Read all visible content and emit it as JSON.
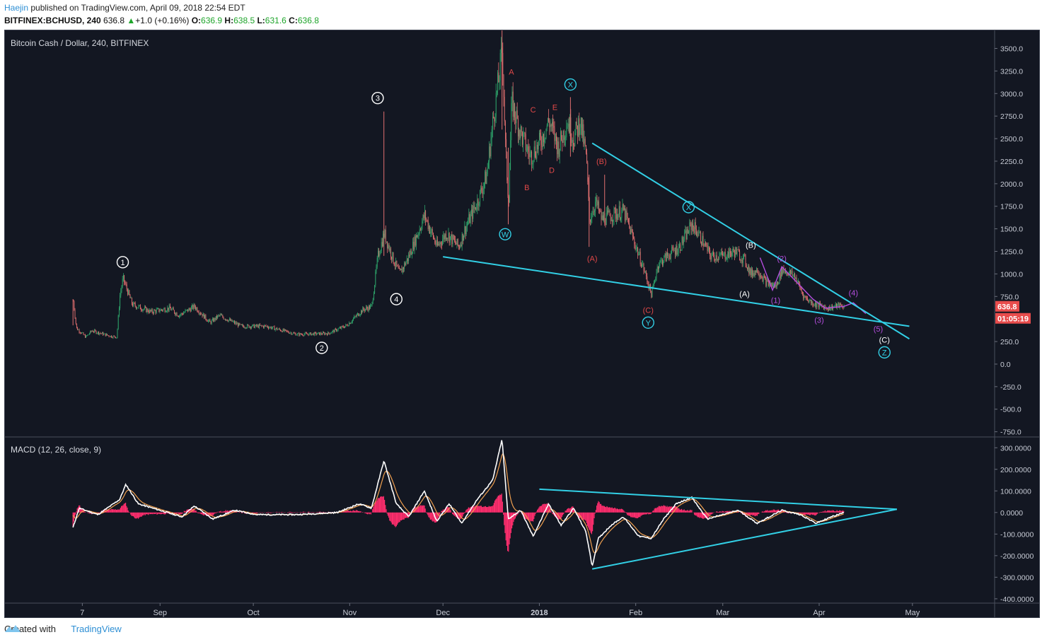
{
  "header": {
    "user": "Haejin",
    "published": "published on TradingView.com, April 09, 2018 22:54 EDT",
    "symbol": "BITFINEX:BCHUSD, 240",
    "last": "636.8",
    "change": "+1.0 (+0.16%)",
    "o_label": "O:",
    "o": "636.9",
    "h_label": "H:",
    "h": "638.5",
    "l_label": "L:",
    "l": "631.6",
    "c_label": "C:",
    "c": "636.8"
  },
  "footer": {
    "created_with": "Created with",
    "brand": "TradingView"
  },
  "colors": {
    "background": "#131722",
    "up": "#2ea66b",
    "down": "#e06f6f",
    "trendline": "#32d0e6",
    "macd_line": "#ffffff",
    "signal_line": "#f0a050",
    "histogram": "#ff2e6e",
    "wave_red": "#e04848",
    "wave_purple": "#b44dde",
    "wave_white": "#ffffff",
    "price_tag": "#e84c4c"
  },
  "chart_data": [
    {
      "type": "candlestick",
      "title": "Bitcoin Cash / Dollar, 240, BITFINEX",
      "ylim": [
        -800,
        3700
      ],
      "y_ticks": [
        "3500.0",
        "3250.0",
        "3000.0",
        "2750.0",
        "2500.0",
        "2250.0",
        "2000.0",
        "1750.0",
        "1500.0",
        "1250.0",
        "1000.0",
        "750.0",
        "250.0",
        "0.0",
        "-250.0",
        "-500.0",
        "-750.0"
      ],
      "x_ticks": [
        "7",
        "Sep",
        "Oct",
        "Nov",
        "Dec",
        "2018",
        "Feb",
        "Mar",
        "Apr",
        "May"
      ],
      "last_price": "636.8",
      "countdown": "01:05:19",
      "price_path": [
        [
          "2017-08-04",
          700
        ],
        [
          "2017-08-05",
          400
        ],
        [
          "2017-08-08",
          300
        ],
        [
          "2017-08-10",
          370
        ],
        [
          "2017-08-16",
          310
        ],
        [
          "2017-08-18",
          300
        ],
        [
          "2017-08-19",
          760
        ],
        [
          "2017-08-20",
          950
        ],
        [
          "2017-08-23",
          660
        ],
        [
          "2017-08-29",
          580
        ],
        [
          "2017-09-04",
          620
        ],
        [
          "2017-09-07",
          540
        ],
        [
          "2017-09-12",
          640
        ],
        [
          "2017-09-17",
          460
        ],
        [
          "2017-09-20",
          540
        ],
        [
          "2017-09-27",
          420
        ],
        [
          "2017-10-05",
          420
        ],
        [
          "2017-10-15",
          330
        ],
        [
          "2017-10-25",
          340
        ],
        [
          "2017-10-31",
          430
        ],
        [
          "2017-11-05",
          600
        ],
        [
          "2017-11-08",
          640
        ],
        [
          "2017-11-10",
          1200
        ],
        [
          "2017-11-12",
          1450
        ],
        [
          "2017-11-15",
          1150
        ],
        [
          "2017-11-17",
          1000
        ],
        [
          "2017-11-20",
          1200
        ],
        [
          "2017-11-25",
          1650
        ],
        [
          "2017-11-29",
          1300
        ],
        [
          "2017-12-02",
          1450
        ],
        [
          "2017-12-06",
          1300
        ],
        [
          "2017-12-08",
          1500
        ],
        [
          "2017-12-12",
          1800
        ],
        [
          "2017-12-15",
          2100
        ],
        [
          "2017-12-17",
          2700
        ],
        [
          "2017-12-19",
          3200
        ],
        [
          "2017-12-20",
          3500
        ],
        [
          "2017-12-21",
          2400
        ],
        [
          "2017-12-22",
          1800
        ],
        [
          "2017-12-23",
          2900
        ],
        [
          "2017-12-26",
          2550
        ],
        [
          "2017-12-29",
          2300
        ],
        [
          "2018-01-01",
          2450
        ],
        [
          "2018-01-04",
          2700
        ],
        [
          "2018-01-07",
          2400
        ],
        [
          "2018-01-10",
          2700
        ],
        [
          "2018-01-12",
          2500
        ],
        [
          "2018-01-14",
          2700
        ],
        [
          "2018-01-16",
          2300
        ],
        [
          "2018-01-17",
          1600
        ],
        [
          "2018-01-19",
          1800
        ],
        [
          "2018-01-21",
          1600
        ],
        [
          "2018-01-24",
          1650
        ],
        [
          "2018-01-28",
          1700
        ],
        [
          "2018-02-01",
          1300
        ],
        [
          "2018-02-04",
          1000
        ],
        [
          "2018-02-06",
          770
        ],
        [
          "2018-02-08",
          1100
        ],
        [
          "2018-02-11",
          1200
        ],
        [
          "2018-02-15",
          1300
        ],
        [
          "2018-02-19",
          1550
        ],
        [
          "2018-02-21",
          1450
        ],
        [
          "2018-02-25",
          1200
        ],
        [
          "2018-03-01",
          1200
        ],
        [
          "2018-03-05",
          1250
        ],
        [
          "2018-03-08",
          1150
        ],
        [
          "2018-03-10",
          1000
        ],
        [
          "2018-03-12",
          1050
        ],
        [
          "2018-03-15",
          900
        ],
        [
          "2018-03-18",
          860
        ],
        [
          "2018-03-20",
          1050
        ],
        [
          "2018-03-24",
          980
        ],
        [
          "2018-03-27",
          750
        ],
        [
          "2018-03-30",
          670
        ],
        [
          "2018-04-02",
          640
        ],
        [
          "2018-04-04",
          620
        ],
        [
          "2018-04-07",
          650
        ],
        [
          "2018-04-09",
          636.8
        ]
      ],
      "trendlines": [
        {
          "from": [
            "2017-12-01",
            1190
          ],
          "to": [
            "2018-04-30",
            420
          ]
        },
        {
          "from": [
            "2018-01-18",
            2450
          ],
          "to": [
            "2018-04-30",
            280
          ]
        }
      ],
      "wave_labels": [
        {
          "text": "1",
          "circled": true,
          "color": "#ffffff",
          "at": [
            "2017-08-20",
            1130
          ]
        },
        {
          "text": "2",
          "circled": true,
          "color": "#ffffff",
          "at": [
            "2017-10-23",
            180
          ]
        },
        {
          "text": "3",
          "circled": true,
          "color": "#ffffff",
          "at": [
            "2017-11-10",
            2950
          ]
        },
        {
          "text": "4",
          "circled": true,
          "color": "#ffffff",
          "at": [
            "2017-11-16",
            720
          ]
        },
        {
          "text": "W",
          "circled": true,
          "color": "#32d0e6",
          "at": [
            "2017-12-21",
            1440
          ]
        },
        {
          "text": "X",
          "circled": true,
          "color": "#32d0e6",
          "at": [
            "2018-01-11",
            3100
          ]
        },
        {
          "text": "X",
          "circled": true,
          "color": "#32d0e6",
          "at": [
            "2018-02-18",
            1740
          ]
        },
        {
          "text": "Y",
          "circled": true,
          "color": "#32d0e6",
          "at": [
            "2018-02-05",
            460
          ]
        },
        {
          "text": "Z",
          "circled": true,
          "color": "#32d0e6",
          "at": [
            "2018-04-22",
            130
          ]
        },
        {
          "text": "A",
          "circled": false,
          "color": "#e04848",
          "at": [
            "2017-12-23",
            3240
          ]
        },
        {
          "text": "B",
          "circled": false,
          "color": "#e04848",
          "at": [
            "2017-12-28",
            1960
          ]
        },
        {
          "text": "C",
          "circled": false,
          "color": "#e04848",
          "at": [
            "2017-12-30",
            2820
          ]
        },
        {
          "text": "D",
          "circled": false,
          "color": "#e04848",
          "at": [
            "2018-01-05",
            2150
          ]
        },
        {
          "text": "E",
          "circled": false,
          "color": "#e04848",
          "at": [
            "2018-01-06",
            2850
          ]
        },
        {
          "text": "(A)",
          "circled": false,
          "color": "#e04848",
          "at": [
            "2018-01-18",
            1170
          ]
        },
        {
          "text": "(B)",
          "circled": false,
          "color": "#e04848",
          "at": [
            "2018-01-21",
            2250
          ]
        },
        {
          "text": "(C)",
          "circled": false,
          "color": "#e04848",
          "at": [
            "2018-02-05",
            600
          ]
        },
        {
          "text": "(A)",
          "circled": false,
          "color": "#ffffff",
          "at": [
            "2018-03-08",
            780
          ]
        },
        {
          "text": "(B)",
          "circled": false,
          "color": "#ffffff",
          "at": [
            "2018-03-10",
            1320
          ]
        },
        {
          "text": "(C)",
          "circled": false,
          "color": "#ffffff",
          "at": [
            "2018-04-22",
            270
          ]
        },
        {
          "text": "(1)",
          "circled": false,
          "color": "#b44dde",
          "at": [
            "2018-03-18",
            710
          ]
        },
        {
          "text": "(2)",
          "circled": false,
          "color": "#b44dde",
          "at": [
            "2018-03-20",
            1170
          ]
        },
        {
          "text": "(3)",
          "circled": false,
          "color": "#b44dde",
          "at": [
            "2018-04-01",
            490
          ]
        },
        {
          "text": "(4)",
          "circled": false,
          "color": "#b44dde",
          "at": [
            "2018-04-12",
            790
          ]
        },
        {
          "text": "(5)",
          "circled": false,
          "color": "#b44dde",
          "at": [
            "2018-04-20",
            390
          ]
        }
      ]
    },
    {
      "type": "line",
      "title": "MACD (12, 26, close, 9)",
      "ylim": [
        -420,
        350
      ],
      "y_ticks": [
        "300.0000",
        "200.0000",
        "100.0000",
        "0.0000",
        "-100.0000",
        "-200.0000",
        "-300.0000",
        "-400.0000"
      ],
      "series": [
        {
          "values": [
            [
              "2017-08-04",
              -70
            ],
            [
              "2017-08-06",
              20
            ],
            [
              "2017-08-12",
              -10
            ],
            [
              "2017-08-19",
              60
            ],
            [
              "2017-08-21",
              130
            ],
            [
              "2017-08-25",
              40
            ],
            [
              "2017-09-01",
              10
            ],
            [
              "2017-09-08",
              -20
            ],
            [
              "2017-09-12",
              30
            ],
            [
              "2017-09-18",
              -30
            ],
            [
              "2017-09-25",
              10
            ],
            [
              "2017-10-02",
              -10
            ],
            [
              "2017-10-15",
              -10
            ],
            [
              "2017-10-28",
              0
            ],
            [
              "2017-11-04",
              40
            ],
            [
              "2017-11-08",
              20
            ],
            [
              "2017-11-12",
              240
            ],
            [
              "2017-11-16",
              40
            ],
            [
              "2017-11-20",
              -20
            ],
            [
              "2017-11-25",
              100
            ],
            [
              "2017-11-29",
              -40
            ],
            [
              "2017-12-03",
              40
            ],
            [
              "2017-12-07",
              -50
            ],
            [
              "2017-12-12",
              60
            ],
            [
              "2017-12-17",
              150
            ],
            [
              "2017-12-20",
              340
            ],
            [
              "2017-12-22",
              -30
            ],
            [
              "2017-12-26",
              10
            ],
            [
              "2017-12-30",
              -110
            ],
            [
              "2018-01-04",
              40
            ],
            [
              "2018-01-08",
              -60
            ],
            [
              "2018-01-12",
              20
            ],
            [
              "2018-01-16",
              -90
            ],
            [
              "2018-01-18",
              -250
            ],
            [
              "2018-01-20",
              -120
            ],
            [
              "2018-01-24",
              -60
            ],
            [
              "2018-01-28",
              -20
            ],
            [
              "2018-02-02",
              -110
            ],
            [
              "2018-02-06",
              -120
            ],
            [
              "2018-02-10",
              -30
            ],
            [
              "2018-02-14",
              40
            ],
            [
              "2018-02-19",
              70
            ],
            [
              "2018-02-24",
              -30
            ],
            [
              "2018-03-01",
              -10
            ],
            [
              "2018-03-06",
              10
            ],
            [
              "2018-03-12",
              -50
            ],
            [
              "2018-03-16",
              -20
            ],
            [
              "2018-03-20",
              10
            ],
            [
              "2018-03-26",
              -10
            ],
            [
              "2018-03-31",
              -50
            ],
            [
              "2018-04-05",
              -20
            ],
            [
              "2018-04-09",
              0
            ]
          ]
        }
      ],
      "trendlines": [
        {
          "from": [
            "2018-01-01",
            108
          ],
          "to": [
            "2018-04-26",
            15
          ]
        },
        {
          "from": [
            "2018-01-18",
            -262
          ],
          "to": [
            "2018-04-26",
            15
          ]
        }
      ]
    }
  ]
}
